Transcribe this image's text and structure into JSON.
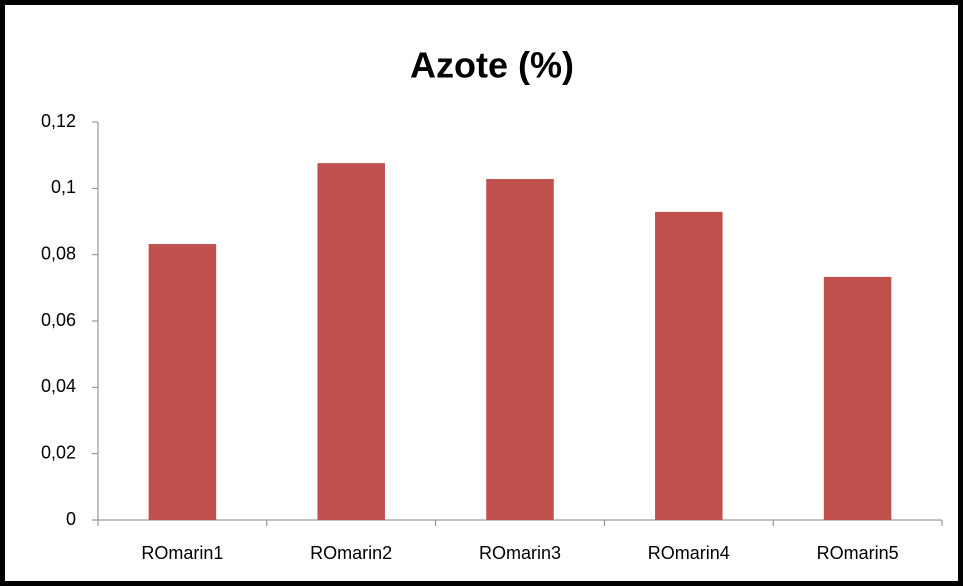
{
  "chart_data": {
    "type": "bar",
    "title": "Azote (%)",
    "categories": [
      "ROmarin1",
      "ROmarin2",
      "ROmarin3",
      "ROmarin4",
      "ROmarin5"
    ],
    "values": [
      0.0832,
      0.1076,
      0.1028,
      0.0929,
      0.0733
    ],
    "color": "#c0504d",
    "ylim": [
      0,
      0.12
    ],
    "yticks": [
      0,
      {
        "value": 0.02,
        "label": "0,02"
      },
      {
        "value": 0.04,
        "label": "0,04"
      },
      {
        "value": 0.06,
        "label": "0,06"
      },
      {
        "value": 0.08,
        "label": "0,08"
      },
      {
        "value": 0.1,
        "label": "0,1"
      },
      {
        "value": 0.12,
        "label": "0,12"
      }
    ],
    "grid": false
  }
}
